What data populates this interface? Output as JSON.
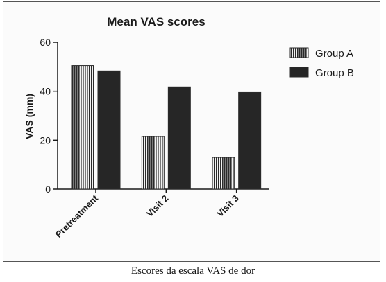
{
  "chart_data": {
    "type": "bar",
    "title": "Mean VAS scores",
    "xlabel": "",
    "ylabel": "VAS (mm)",
    "categories": [
      "Pretreatment",
      "Visit 2",
      "Visit 3"
    ],
    "series": [
      {
        "name": "Group A",
        "values": [
          50.5,
          21.5,
          13
        ],
        "color": "#2a2a2a",
        "pattern": "vertical-stripes"
      },
      {
        "name": "Group B",
        "values": [
          48.3,
          41.8,
          39.5
        ],
        "color": "#262626",
        "pattern": "solid"
      }
    ],
    "ylim": [
      0,
      60
    ],
    "yticks": [
      0,
      20,
      40,
      60
    ],
    "grid": false,
    "legend_position": "top-right"
  },
  "caption": "Escores da escala VAS de dor"
}
